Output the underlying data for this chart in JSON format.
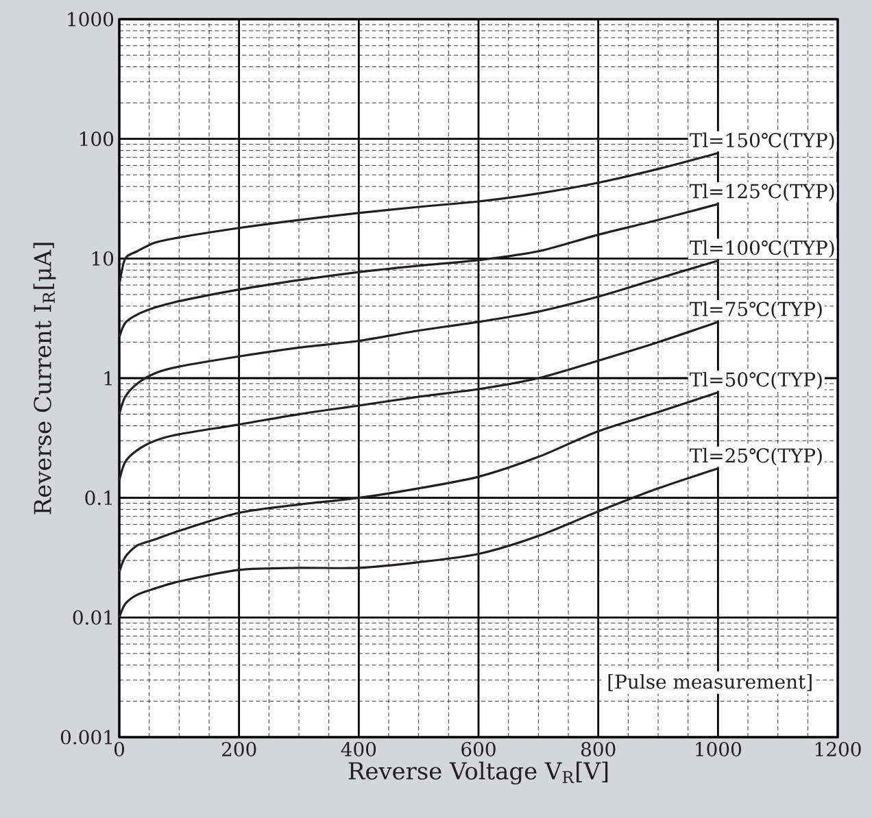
{
  "chart_data": {
    "type": "line",
    "xlabel": "Reverse Voltage  V$_{R}$[V]",
    "ylabel": "Reverse Current I$_{R}$[μA]",
    "log": "y",
    "grid": true,
    "line_style": "solid",
    "marker": "none",
    "xlim": [
      0,
      1200
    ],
    "xticks": [
      0,
      200,
      400,
      600,
      800,
      1000,
      1200
    ],
    "ylim": [
      0.001,
      1000
    ],
    "yticks": [
      0.001,
      0.01,
      0.1,
      1,
      10,
      100,
      1000
    ],
    "annotations": [
      "[Pulse measurement]"
    ],
    "series": [
      {
        "name": "Tl=150℃(TYP)",
        "color": "#231f20",
        "x": [
          0,
          10,
          30,
          60,
          100,
          200,
          300,
          400,
          500,
          600,
          700,
          800,
          900,
          1000
        ],
        "values": [
          6,
          10,
          11.5,
          13.6,
          15,
          18,
          21,
          24,
          27,
          30,
          35,
          43,
          56,
          76
        ]
      },
      {
        "name": "Tl=125℃(TYP)",
        "color": "#231f20",
        "x": [
          0,
          10,
          30,
          60,
          100,
          200,
          300,
          400,
          500,
          600,
          700,
          800,
          900,
          1000
        ],
        "values": [
          2.2,
          2.9,
          3.4,
          3.9,
          4.4,
          5.5,
          6.6,
          7.7,
          8.7,
          9.7,
          11.5,
          15.8,
          21,
          28.5
        ]
      },
      {
        "name": "Tl=100℃(TYP)",
        "color": "#231f20",
        "x": [
          0,
          10,
          30,
          60,
          100,
          200,
          300,
          400,
          500,
          600,
          700,
          800,
          900,
          1000
        ],
        "values": [
          0.5,
          0.7,
          0.9,
          1.1,
          1.25,
          1.52,
          1.8,
          2.05,
          2.5,
          2.95,
          3.6,
          4.8,
          6.8,
          9.6
        ]
      },
      {
        "name": "Tl=75℃(TYP)",
        "color": "#231f20",
        "x": [
          0,
          10,
          30,
          60,
          100,
          200,
          300,
          400,
          500,
          600,
          700,
          800,
          900,
          1000
        ],
        "values": [
          0.14,
          0.2,
          0.25,
          0.3,
          0.34,
          0.41,
          0.5,
          0.59,
          0.7,
          0.81,
          1.0,
          1.4,
          2.0,
          2.95
        ]
      },
      {
        "name": "Tl=50℃(TYP)",
        "color": "#231f20",
        "x": [
          0,
          10,
          30,
          60,
          100,
          200,
          300,
          400,
          500,
          600,
          700,
          800,
          900,
          1000
        ],
        "values": [
          0.024,
          0.032,
          0.04,
          0.045,
          0.053,
          0.075,
          0.088,
          0.1,
          0.12,
          0.15,
          0.22,
          0.36,
          0.52,
          0.76
        ]
      },
      {
        "name": "Tl=25℃(TYP)",
        "color": "#231f20",
        "x": [
          0,
          10,
          30,
          60,
          100,
          200,
          300,
          400,
          500,
          600,
          700,
          800,
          900,
          1000
        ],
        "values": [
          0.01,
          0.013,
          0.0155,
          0.0175,
          0.02,
          0.025,
          0.026,
          0.026,
          0.029,
          0.034,
          0.048,
          0.077,
          0.12,
          0.176
        ]
      }
    ]
  }
}
